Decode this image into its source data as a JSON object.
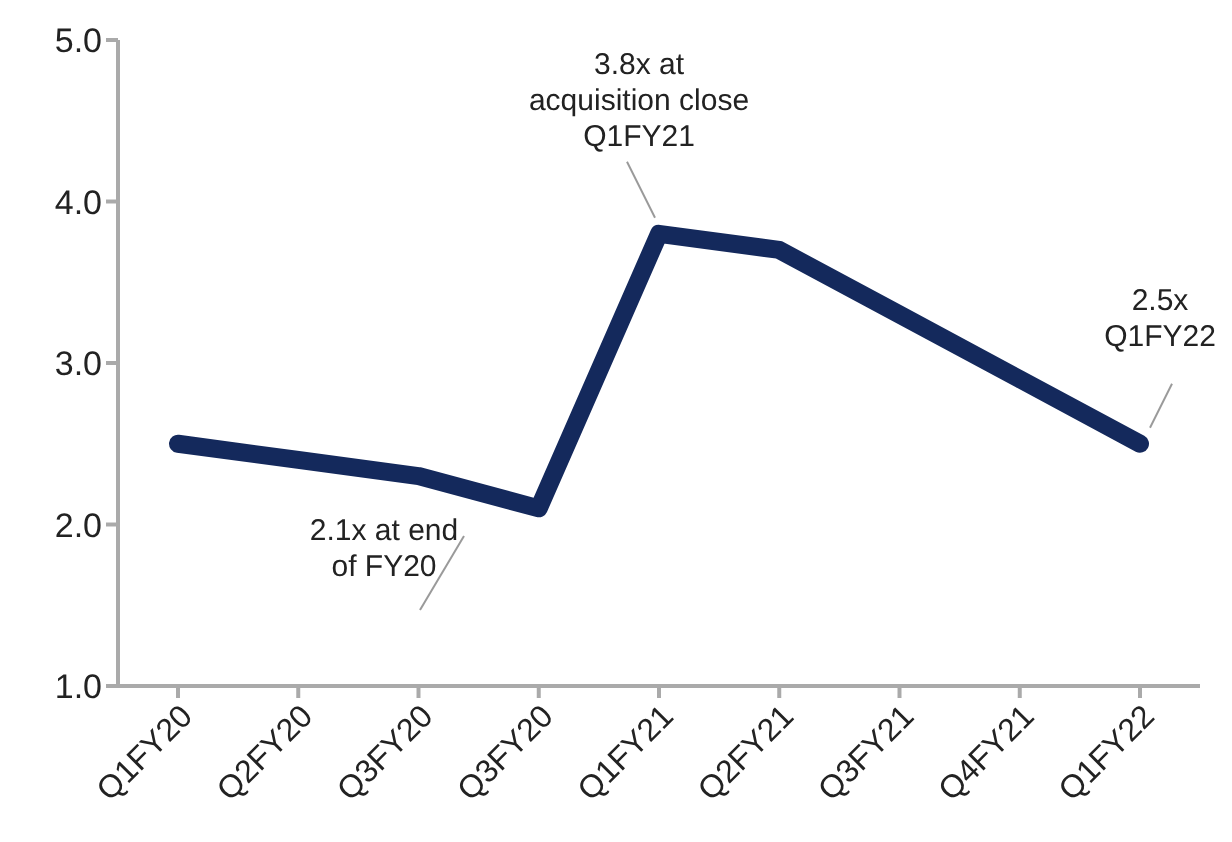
{
  "chart_data": {
    "type": "line",
    "categories": [
      "Q1FY20",
      "Q2FY20",
      "Q3FY20",
      "Q3FY20",
      "Q1FY21",
      "Q2FY21",
      "Q3FY21",
      "Q4FY21",
      "Q1FY22"
    ],
    "values": [
      2.5,
      2.4,
      2.3,
      2.1,
      3.8,
      3.7,
      3.3,
      2.9,
      2.5
    ],
    "color": "#14295c",
    "ylim": [
      1,
      5
    ],
    "yticks": [
      {
        "value": 1,
        "label": "1.0"
      },
      {
        "value": 2,
        "label": "2.0"
      },
      {
        "value": 3,
        "label": "3.0"
      },
      {
        "value": 4,
        "label": "4.0"
      },
      {
        "value": 5,
        "label": "5.0"
      }
    ],
    "grid": false,
    "marker": "none",
    "line_style": "solid",
    "annotations": [
      {
        "text": "3.8x at\nacquisition close\nQ1FY21",
        "x": "Q1FY21",
        "y": 3.8
      },
      "2.1x at end\nof FY20",
      {
        "text": "2.5x\nQ1FY22",
        "x": "Q1FY22",
        "y": 2.5
      }
    ]
  }
}
